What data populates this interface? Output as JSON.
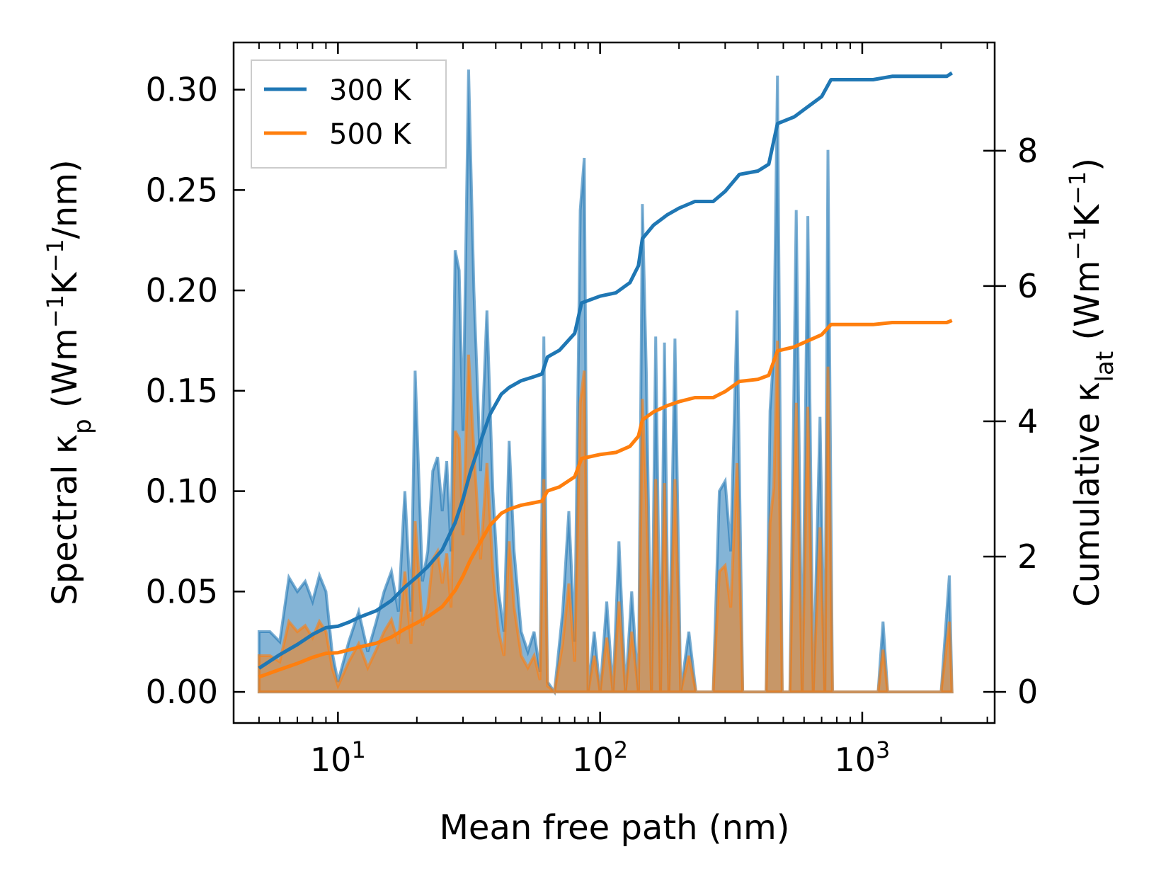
{
  "chart_data": {
    "type": "area+line (dual axis)",
    "xlabel": "Mean free path (nm)",
    "xscale": "log",
    "xlim": [
      4,
      3200
    ],
    "x_ticks": [
      {
        "value": 10,
        "base": "10",
        "exp": "1"
      },
      {
        "value": 100,
        "base": "10",
        "exp": "2"
      },
      {
        "value": 1000,
        "base": "10",
        "exp": "3"
      }
    ],
    "left_axis": {
      "label_main": "Spectral κ",
      "label_sub": "p",
      "label_units_open": " (Wm",
      "label_units_exp1": "−1",
      "label_units_k": "K",
      "label_units_exp2": "−1",
      "label_units_close": "/nm)",
      "ylim": [
        -0.0155,
        0.3235
      ],
      "ticks": [
        {
          "value": 0.0,
          "label": "0.00"
        },
        {
          "value": 0.05,
          "label": "0.05"
        },
        {
          "value": 0.1,
          "label": "0.10"
        },
        {
          "value": 0.15,
          "label": "0.15"
        },
        {
          "value": 0.2,
          "label": "0.20"
        },
        {
          "value": 0.25,
          "label": "0.25"
        },
        {
          "value": 0.3,
          "label": "0.30"
        }
      ]
    },
    "right_axis": {
      "label_main": "Cumulative κ",
      "label_sub": "lat",
      "label_units_open": " (Wm",
      "label_units_exp1": "−1",
      "label_units_k": "K",
      "label_units_exp2": "−1",
      "label_units_close": ")",
      "ylim": [
        -0.46,
        9.6
      ],
      "ticks": [
        {
          "value": 0,
          "label": "0"
        },
        {
          "value": 2,
          "label": "2"
        },
        {
          "value": 4,
          "label": "4"
        },
        {
          "value": 6,
          "label": "6"
        },
        {
          "value": 8,
          "label": "8"
        }
      ]
    },
    "legend": {
      "position": "top-left",
      "entries": [
        "300 K",
        "500 K"
      ]
    },
    "series": [
      {
        "name": "300 K",
        "color": "#1f77b4",
        "fill_color": "#1f77b4",
        "spectral": [
          [
            5.0,
            0.03
          ],
          [
            5.5,
            0.03
          ],
          [
            6.0,
            0.025
          ],
          [
            6.5,
            0.057
          ],
          [
            7.0,
            0.05
          ],
          [
            7.5,
            0.055
          ],
          [
            8.0,
            0.045
          ],
          [
            8.5,
            0.058
          ],
          [
            9.0,
            0.05
          ],
          [
            9.5,
            0.02
          ],
          [
            10,
            0.005
          ],
          [
            11,
            0.025
          ],
          [
            12,
            0.04
          ],
          [
            13,
            0.02
          ],
          [
            14,
            0.035
          ],
          [
            15,
            0.05
          ],
          [
            16,
            0.06
          ],
          [
            17,
            0.04
          ],
          [
            18,
            0.1
          ],
          [
            19,
            0.04
          ],
          [
            19.7,
            0.16
          ],
          [
            21,
            0.055
          ],
          [
            22,
            0.07
          ],
          [
            23,
            0.11
          ],
          [
            24,
            0.117
          ],
          [
            25,
            0.09
          ],
          [
            26,
            0.115
          ],
          [
            27,
            0.07
          ],
          [
            28,
            0.22
          ],
          [
            29,
            0.21
          ],
          [
            30,
            0.13
          ],
          [
            31.5,
            0.31
          ],
          [
            33,
            0.2
          ],
          [
            35,
            0.11
          ],
          [
            37,
            0.19
          ],
          [
            39,
            0.1
          ],
          [
            41,
            0.05
          ],
          [
            43,
            0.03
          ],
          [
            45,
            0.125
          ],
          [
            47,
            0.07
          ],
          [
            50,
            0.03
          ],
          [
            53,
            0.02
          ],
          [
            56,
            0.03
          ],
          [
            59,
            0.01
          ],
          [
            61,
            0.177
          ],
          [
            63,
            0.005
          ],
          [
            67,
            0.0
          ],
          [
            72,
            0.04
          ],
          [
            76,
            0.09
          ],
          [
            80,
            0.025
          ],
          [
            84,
            0.24
          ],
          [
            87,
            0.266
          ],
          [
            90,
            0.0
          ],
          [
            95,
            0.03
          ],
          [
            100,
            0.0
          ],
          [
            106,
            0.045
          ],
          [
            112,
            0.0
          ],
          [
            118,
            0.075
          ],
          [
            125,
            0.0
          ],
          [
            132,
            0.05
          ],
          [
            140,
            0.0
          ],
          [
            145,
            0.243
          ],
          [
            150,
            0.16
          ],
          [
            157,
            0.0
          ],
          [
            163,
            0.177
          ],
          [
            170,
            0.0
          ],
          [
            176,
            0.174
          ],
          [
            183,
            0.0
          ],
          [
            193,
            0.176
          ],
          [
            203,
            0.0
          ],
          [
            218,
            0.03
          ],
          [
            232,
            0.0
          ],
          [
            270,
            0.0
          ],
          [
            285,
            0.1
          ],
          [
            300,
            0.105
          ],
          [
            315,
            0.07
          ],
          [
            333,
            0.19
          ],
          [
            350,
            0.0
          ],
          [
            430,
            0.0
          ],
          [
            445,
            0.14
          ],
          [
            460,
            0.17
          ],
          [
            475,
            0.307
          ],
          [
            495,
            0.0
          ],
          [
            530,
            0.0
          ],
          [
            560,
            0.24
          ],
          [
            590,
            0.0
          ],
          [
            620,
            0.237
          ],
          [
            650,
            0.0
          ],
          [
            690,
            0.137
          ],
          [
            720,
            0.0
          ],
          [
            740,
            0.27
          ],
          [
            770,
            0.0
          ],
          [
            1150,
            0.0
          ],
          [
            1200,
            0.035
          ],
          [
            1250,
            0.0
          ],
          [
            2000,
            0.0
          ],
          [
            2150,
            0.058
          ],
          [
            2200,
            0.0
          ]
        ],
        "cumulative": [
          [
            5.0,
            0.35
          ],
          [
            6.0,
            0.55
          ],
          [
            7.0,
            0.7
          ],
          [
            8.0,
            0.85
          ],
          [
            9.0,
            0.95
          ],
          [
            10,
            0.97
          ],
          [
            11,
            1.03
          ],
          [
            12,
            1.1
          ],
          [
            14,
            1.2
          ],
          [
            16,
            1.35
          ],
          [
            18,
            1.55
          ],
          [
            20,
            1.7
          ],
          [
            22,
            1.85
          ],
          [
            25,
            2.1
          ],
          [
            28,
            2.5
          ],
          [
            30,
            2.85
          ],
          [
            32,
            3.25
          ],
          [
            35,
            3.7
          ],
          [
            38,
            4.1
          ],
          [
            42,
            4.4
          ],
          [
            45,
            4.5
          ],
          [
            50,
            4.6
          ],
          [
            55,
            4.65
          ],
          [
            60,
            4.7
          ],
          [
            63,
            4.95
          ],
          [
            70,
            5.05
          ],
          [
            80,
            5.3
          ],
          [
            85,
            5.75
          ],
          [
            100,
            5.85
          ],
          [
            115,
            5.9
          ],
          [
            130,
            6.05
          ],
          [
            140,
            6.3
          ],
          [
            145,
            6.7
          ],
          [
            160,
            6.9
          ],
          [
            180,
            7.05
          ],
          [
            200,
            7.15
          ],
          [
            230,
            7.25
          ],
          [
            270,
            7.25
          ],
          [
            300,
            7.4
          ],
          [
            340,
            7.65
          ],
          [
            400,
            7.7
          ],
          [
            440,
            7.8
          ],
          [
            475,
            8.4
          ],
          [
            550,
            8.5
          ],
          [
            620,
            8.65
          ],
          [
            700,
            8.8
          ],
          [
            760,
            9.05
          ],
          [
            1100,
            9.05
          ],
          [
            1300,
            9.1
          ],
          [
            2100,
            9.1
          ],
          [
            2200,
            9.15
          ]
        ]
      },
      {
        "name": "500 K",
        "color": "#ff7f0e",
        "fill_color": "#ff7f0e",
        "spectral": [
          [
            5.0,
            0.018
          ],
          [
            5.5,
            0.018
          ],
          [
            6.0,
            0.015
          ],
          [
            6.5,
            0.035
          ],
          [
            7.0,
            0.03
          ],
          [
            7.5,
            0.033
          ],
          [
            8.0,
            0.027
          ],
          [
            8.5,
            0.035
          ],
          [
            9.0,
            0.03
          ],
          [
            9.5,
            0.012
          ],
          [
            10,
            0.003
          ],
          [
            11,
            0.015
          ],
          [
            12,
            0.024
          ],
          [
            13,
            0.012
          ],
          [
            14,
            0.021
          ],
          [
            15,
            0.03
          ],
          [
            16,
            0.036
          ],
          [
            17,
            0.024
          ],
          [
            18,
            0.06
          ],
          [
            19,
            0.024
          ],
          [
            19.7,
            0.085
          ],
          [
            21,
            0.033
          ],
          [
            22,
            0.042
          ],
          [
            23,
            0.066
          ],
          [
            24,
            0.07
          ],
          [
            25,
            0.054
          ],
          [
            26,
            0.069
          ],
          [
            27,
            0.042
          ],
          [
            28,
            0.13
          ],
          [
            29,
            0.126
          ],
          [
            30,
            0.078
          ],
          [
            31.5,
            0.168
          ],
          [
            33,
            0.12
          ],
          [
            35,
            0.066
          ],
          [
            37,
            0.114
          ],
          [
            39,
            0.06
          ],
          [
            41,
            0.03
          ],
          [
            43,
            0.018
          ],
          [
            45,
            0.075
          ],
          [
            47,
            0.042
          ],
          [
            50,
            0.018
          ],
          [
            53,
            0.012
          ],
          [
            56,
            0.018
          ],
          [
            59,
            0.006
          ],
          [
            61,
            0.106
          ],
          [
            63,
            0.003
          ],
          [
            67,
            0.0
          ],
          [
            72,
            0.024
          ],
          [
            76,
            0.054
          ],
          [
            80,
            0.015
          ],
          [
            84,
            0.144
          ],
          [
            87,
            0.16
          ],
          [
            90,
            0.0
          ],
          [
            95,
            0.018
          ],
          [
            100,
            0.0
          ],
          [
            106,
            0.027
          ],
          [
            112,
            0.0
          ],
          [
            118,
            0.045
          ],
          [
            125,
            0.0
          ],
          [
            132,
            0.03
          ],
          [
            140,
            0.0
          ],
          [
            145,
            0.146
          ],
          [
            150,
            0.096
          ],
          [
            157,
            0.0
          ],
          [
            163,
            0.106
          ],
          [
            170,
            0.0
          ],
          [
            176,
            0.104
          ],
          [
            183,
            0.0
          ],
          [
            193,
            0.106
          ],
          [
            203,
            0.0
          ],
          [
            218,
            0.018
          ],
          [
            232,
            0.0
          ],
          [
            270,
            0.0
          ],
          [
            285,
            0.06
          ],
          [
            300,
            0.063
          ],
          [
            315,
            0.042
          ],
          [
            333,
            0.114
          ],
          [
            350,
            0.0
          ],
          [
            430,
            0.0
          ],
          [
            445,
            0.084
          ],
          [
            460,
            0.102
          ],
          [
            475,
            0.175
          ],
          [
            495,
            0.0
          ],
          [
            530,
            0.0
          ],
          [
            560,
            0.144
          ],
          [
            590,
            0.0
          ],
          [
            620,
            0.142
          ],
          [
            650,
            0.0
          ],
          [
            690,
            0.082
          ],
          [
            720,
            0.0
          ],
          [
            740,
            0.162
          ],
          [
            770,
            0.0
          ],
          [
            1150,
            0.0
          ],
          [
            1200,
            0.021
          ],
          [
            1250,
            0.0
          ],
          [
            2000,
            0.0
          ],
          [
            2150,
            0.035
          ],
          [
            2200,
            0.0
          ]
        ],
        "cumulative": [
          [
            5.0,
            0.22
          ],
          [
            6.0,
            0.33
          ],
          [
            7.0,
            0.42
          ],
          [
            8.0,
            0.51
          ],
          [
            9.0,
            0.57
          ],
          [
            10,
            0.58
          ],
          [
            11,
            0.62
          ],
          [
            12,
            0.66
          ],
          [
            14,
            0.72
          ],
          [
            16,
            0.81
          ],
          [
            18,
            0.93
          ],
          [
            20,
            1.02
          ],
          [
            22,
            1.11
          ],
          [
            25,
            1.26
          ],
          [
            28,
            1.5
          ],
          [
            30,
            1.71
          ],
          [
            32,
            1.95
          ],
          [
            35,
            2.22
          ],
          [
            38,
            2.46
          ],
          [
            42,
            2.64
          ],
          [
            45,
            2.7
          ],
          [
            50,
            2.76
          ],
          [
            55,
            2.79
          ],
          [
            60,
            2.82
          ],
          [
            63,
            2.97
          ],
          [
            70,
            3.03
          ],
          [
            80,
            3.18
          ],
          [
            85,
            3.45
          ],
          [
            100,
            3.51
          ],
          [
            115,
            3.54
          ],
          [
            130,
            3.63
          ],
          [
            140,
            3.78
          ],
          [
            145,
            4.02
          ],
          [
            160,
            4.14
          ],
          [
            180,
            4.23
          ],
          [
            200,
            4.29
          ],
          [
            230,
            4.35
          ],
          [
            270,
            4.35
          ],
          [
            300,
            4.44
          ],
          [
            340,
            4.59
          ],
          [
            400,
            4.62
          ],
          [
            440,
            4.68
          ],
          [
            475,
            5.04
          ],
          [
            550,
            5.1
          ],
          [
            620,
            5.19
          ],
          [
            700,
            5.28
          ],
          [
            760,
            5.43
          ],
          [
            1100,
            5.43
          ],
          [
            1300,
            5.46
          ],
          [
            2100,
            5.46
          ],
          [
            2200,
            5.49
          ]
        ]
      }
    ]
  }
}
